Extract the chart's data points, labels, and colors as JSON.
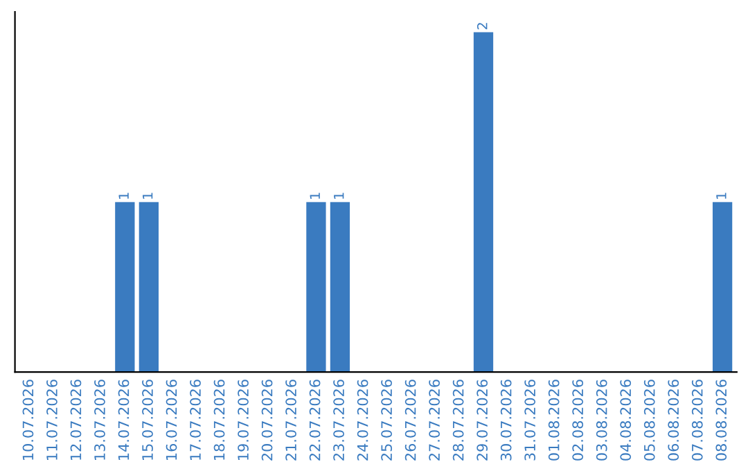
{
  "chart_data": {
    "type": "bar",
    "categories": [
      "10.07.2026",
      "11.07.2026",
      "12.07.2026",
      "13.07.2026",
      "14.07.2026",
      "15.07.2026",
      "16.07.2026",
      "17.07.2026",
      "18.07.2026",
      "19.07.2026",
      "20.07.2026",
      "21.07.2026",
      "22.07.2026",
      "23.07.2026",
      "24.07.2026",
      "25.07.2026",
      "26.07.2026",
      "27.07.2026",
      "28.07.2026",
      "29.07.2026",
      "30.07.2026",
      "31.07.2026",
      "01.08.2026",
      "02.08.2026",
      "03.08.2026",
      "04.08.2026",
      "05.08.2026",
      "06.08.2026",
      "07.08.2026",
      "08.08.2026"
    ],
    "values": [
      0,
      0,
      0,
      0,
      1,
      1,
      0,
      0,
      0,
      0,
      0,
      0,
      1,
      1,
      0,
      0,
      0,
      0,
      0,
      2,
      0,
      0,
      0,
      0,
      0,
      0,
      0,
      0,
      0,
      1
    ],
    "value_labels": [
      null,
      null,
      null,
      null,
      "1",
      "1",
      null,
      null,
      null,
      null,
      null,
      null,
      "1",
      "1",
      null,
      null,
      null,
      null,
      null,
      "2",
      null,
      null,
      null,
      null,
      null,
      null,
      null,
      null,
      null,
      "1"
    ],
    "color": "#3a7bc0",
    "tick_labels": "x",
    "grid": false,
    "legend": false
  }
}
